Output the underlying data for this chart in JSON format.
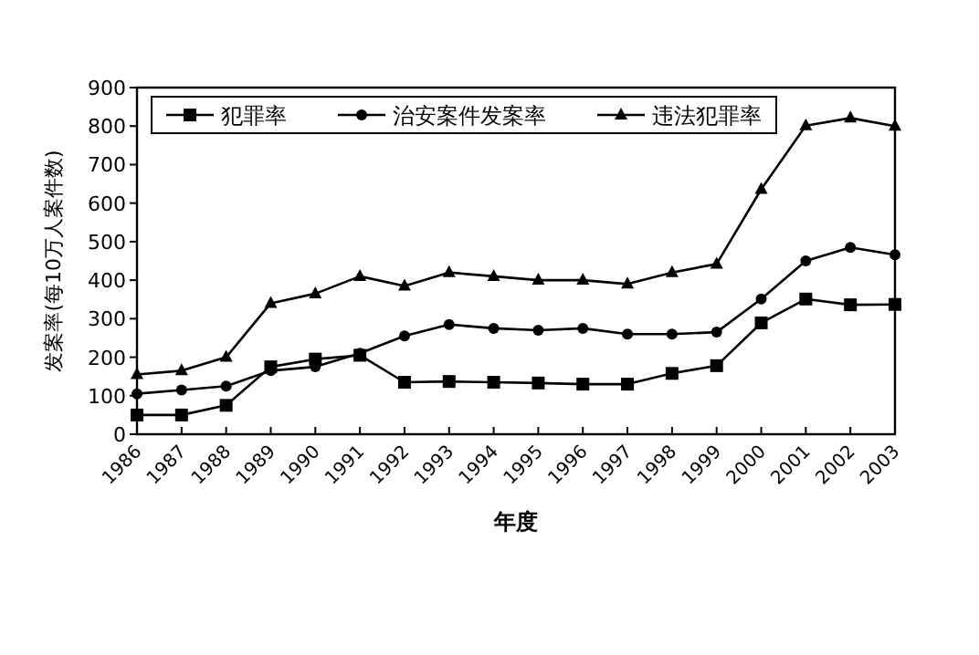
{
  "chart_data": {
    "type": "line",
    "xlabel": "年度",
    "ylabel": "发案率(每10万人案件数)",
    "x": [
      1986,
      1987,
      1988,
      1989,
      1990,
      1991,
      1992,
      1993,
      1994,
      1995,
      1996,
      1997,
      1998,
      1999,
      2000,
      2001,
      2002,
      2003
    ],
    "xlim": [
      1986,
      2003
    ],
    "xticks": [
      1986,
      1987,
      1988,
      1989,
      1990,
      1991,
      1992,
      1993,
      1994,
      1995,
      1996,
      1997,
      1998,
      1999,
      2000,
      2001,
      2002,
      2003
    ],
    "ylim": [
      0,
      900
    ],
    "yticks": [
      0,
      100,
      200,
      300,
      400,
      500,
      600,
      700,
      800,
      900
    ],
    "legend": "top",
    "grid": false,
    "line_style": "solid",
    "series": [
      {
        "name": "犯罪率",
        "color": "#000000",
        "marker": "square",
        "values": [
          50,
          50,
          75,
          175,
          195,
          205,
          135,
          137,
          135,
          133,
          130,
          130,
          158,
          178,
          289,
          351,
          336,
          337
        ]
      },
      {
        "name": "治安案件发案率",
        "color": "#000000",
        "marker": "circle",
        "values": [
          105,
          115,
          125,
          165,
          175,
          210,
          255,
          285,
          275,
          270,
          275,
          260,
          260,
          265,
          351,
          450,
          485,
          466
        ]
      },
      {
        "name": "违法犯罪率",
        "color": "#000000",
        "marker": "triangle",
        "values": [
          155,
          165,
          200,
          340,
          365,
          410,
          385,
          420,
          410,
          400,
          400,
          390,
          420,
          442,
          636,
          801,
          821,
          800
        ]
      }
    ]
  }
}
